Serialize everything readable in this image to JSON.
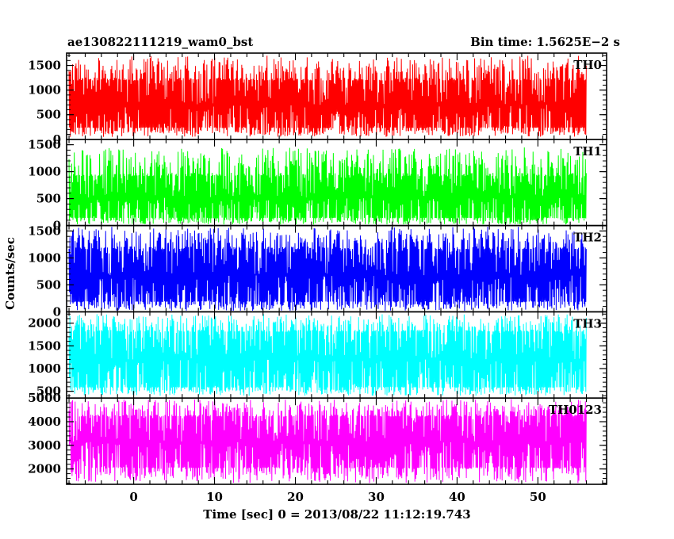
{
  "header": {
    "title": "ae130822111219_wam0_bst",
    "bin_time": "Bin time: 1.5625E−2 s"
  },
  "chart_data": {
    "type": "line",
    "xlabel": "Time [sec] 0 = 2013/08/22 11:12:19.743",
    "ylabel": "Counts/sec",
    "xlim": [
      -8.3,
      58.5
    ],
    "x_ticks": [
      0,
      10,
      20,
      30,
      40,
      50
    ],
    "x_range": [
      -8,
      56
    ],
    "grid": false,
    "panels": [
      {
        "name": "TH0",
        "color": "#ff0000",
        "ylim": [
          0,
          1750
        ],
        "y_ticks": [
          0,
          500,
          1000,
          1500
        ],
        "band_low": 250,
        "band_high": 1180,
        "min": 50,
        "max": 1700,
        "mean": 700
      },
      {
        "name": "TH1",
        "color": "#00ff00",
        "ylim": [
          0,
          1600
        ],
        "y_ticks": [
          0,
          500,
          1000,
          1500
        ],
        "band_low": 150,
        "band_high": 900,
        "min": 20,
        "max": 1450,
        "mean": 520
      },
      {
        "name": "TH2",
        "color": "#0000ff",
        "ylim": [
          0,
          1600
        ],
        "y_ticks": [
          0,
          500,
          1000,
          1500
        ],
        "band_low": 200,
        "band_high": 1150,
        "min": 20,
        "max": 1580,
        "mean": 680
      },
      {
        "name": "TH3",
        "color": "#00ffff",
        "ylim": [
          350,
          2250
        ],
        "y_ticks": [
          500,
          1000,
          1500,
          2000
        ],
        "band_low": 600,
        "band_high": 1800,
        "min": 400,
        "max": 2200,
        "mean": 1200
      },
      {
        "name": "TH0123",
        "color": "#ff00ff",
        "ylim": [
          1350,
          5000
        ],
        "y_ticks": [
          2000,
          3000,
          4000,
          5000
        ],
        "band_low": 2100,
        "band_high": 4200,
        "min": 1400,
        "max": 4950,
        "mean": 3150
      }
    ]
  }
}
